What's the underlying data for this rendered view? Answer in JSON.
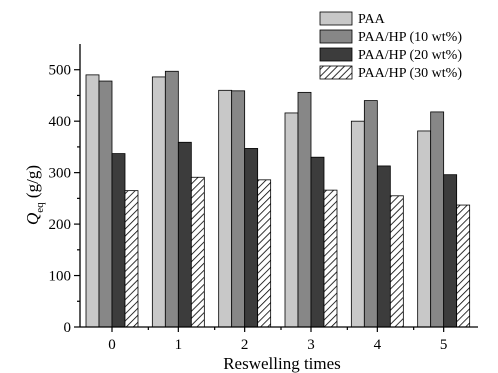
{
  "chart_data": {
    "type": "bar",
    "xlabel": "Reswelling times",
    "ylabel_main": "Q",
    "ylabel_sub": "eq",
    "ylabel_unit": " (g/g)",
    "categories": [
      "0",
      "1",
      "2",
      "3",
      "4",
      "5"
    ],
    "ylim": [
      0,
      550
    ],
    "yticks": [
      0,
      100,
      200,
      300,
      400,
      500
    ],
    "legend_position": "top-right",
    "series": [
      {
        "name": "PAA",
        "color": "#c8c8c8",
        "pattern": "solid",
        "values": [
          490,
          486,
          460,
          416,
          400,
          381
        ]
      },
      {
        "name": "PAA/HP (10 wt%)",
        "color": "#878787",
        "pattern": "solid",
        "values": [
          478,
          497,
          459,
          456,
          440,
          418
        ]
      },
      {
        "name": "PAA/HP (20 wt%)",
        "color": "#3c3c3c",
        "pattern": "solid",
        "values": [
          337,
          359,
          347,
          330,
          313,
          296
        ]
      },
      {
        "name": "PAA/HP (30 wt%)",
        "color": "#ffffff",
        "pattern": "hatch",
        "values": [
          265,
          291,
          286,
          266,
          255,
          237
        ]
      }
    ]
  }
}
